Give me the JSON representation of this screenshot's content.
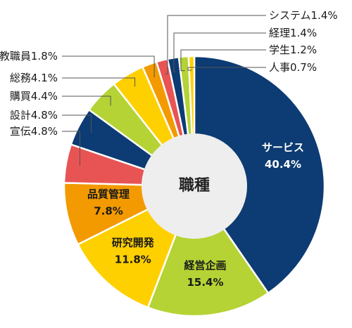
{
  "chart_data": {
    "type": "pie",
    "donut": true,
    "center_label": "職種",
    "start": "12 o'clock",
    "direction": "clockwise",
    "legend": "none",
    "slices": [
      {
        "label": "サービス",
        "value": 40.4,
        "display": "40.4%",
        "color": "#0d3b73",
        "label_style": "inside",
        "text_color": "#ffffff"
      },
      {
        "label": "経営企画",
        "value": 15.4,
        "display": "15.4%",
        "color": "#b5d334",
        "label_style": "inside",
        "text_color": "#1a1a1a"
      },
      {
        "label": "研究開発",
        "value": 11.8,
        "display": "11.8%",
        "color": "#ffd000",
        "label_style": "inside",
        "text_color": "#1a1a1a"
      },
      {
        "label": "品質管理",
        "value": 7.8,
        "display": "7.8%",
        "color": "#f39a00",
        "label_style": "inside",
        "text_color": "#1a1a1a"
      },
      {
        "label": "宣伝",
        "value": 4.8,
        "display": "4.8%",
        "color": "#e85454",
        "label_style": "outside-left",
        "text_color": "#1a1a1a"
      },
      {
        "label": "設計",
        "value": 4.8,
        "display": "4.8%",
        "color": "#0d3b73",
        "label_style": "outside-left",
        "text_color": "#1a1a1a"
      },
      {
        "label": "購買",
        "value": 4.4,
        "display": "4.4%",
        "color": "#b5d334",
        "label_style": "outside-left",
        "text_color": "#1a1a1a"
      },
      {
        "label": "総務",
        "value": 4.1,
        "display": "4.1%",
        "color": "#ffd000",
        "label_style": "outside-left",
        "text_color": "#1a1a1a"
      },
      {
        "label": "教職員",
        "value": 1.8,
        "display": "1.8%",
        "color": "#f39a00",
        "label_style": "outside-left",
        "text_color": "#1a1a1a"
      },
      {
        "label": "システム",
        "value": 1.4,
        "display": "1.4%",
        "color": "#e85454",
        "label_style": "outside-right",
        "text_color": "#1a1a1a"
      },
      {
        "label": "経理",
        "value": 1.4,
        "display": "1.4%",
        "color": "#0d3b73",
        "label_style": "outside-right",
        "text_color": "#1a1a1a"
      },
      {
        "label": "学生",
        "value": 1.2,
        "display": "1.2%",
        "color": "#b5d334",
        "label_style": "outside-right",
        "text_color": "#1a1a1a"
      },
      {
        "label": "人事",
        "value": 0.7,
        "display": "0.7%",
        "color": "#ffd000",
        "label_style": "outside-right",
        "text_color": "#1a1a1a"
      }
    ]
  }
}
